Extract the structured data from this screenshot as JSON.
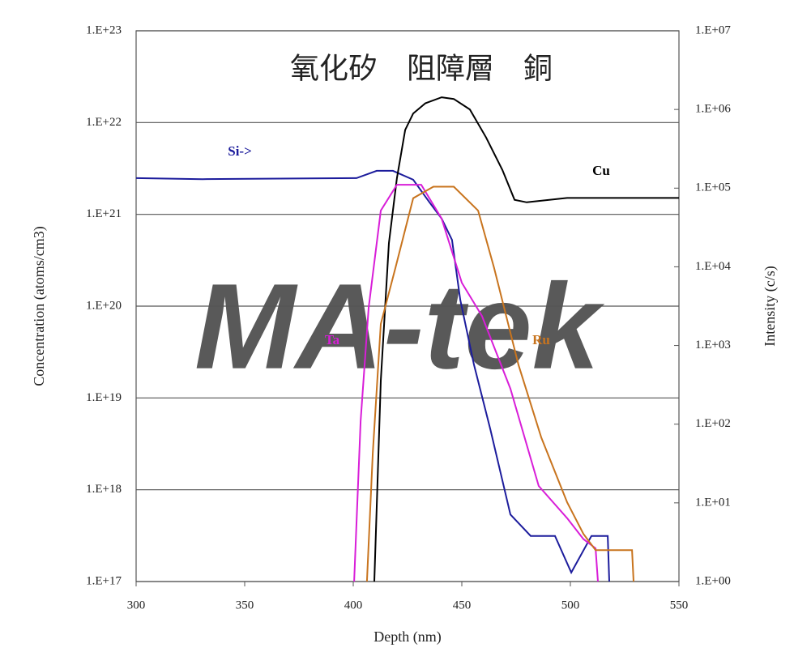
{
  "chart_data": {
    "type": "line",
    "title": "氧化矽　阻障層　銅",
    "watermark": "MA-tek",
    "xlabel": "Depth (nm)",
    "ylabel": "Concentration (atoms/cm3)",
    "y2label": "Intensity (c/s)",
    "xlim": [
      300,
      550
    ],
    "xticks": [
      300,
      350,
      400,
      450,
      500,
      550
    ],
    "ylog": true,
    "ylim": [
      1e+17,
      1e+23
    ],
    "yticks": [
      {
        "value": 1e+17,
        "label": "1.E+17"
      },
      {
        "value": 1e+18,
        "label": "1.E+18"
      },
      {
        "value": 1e+19,
        "label": "1.E+19"
      },
      {
        "value": 1e+20,
        "label": "1.E+20"
      },
      {
        "value": 1e+21,
        "label": "1.E+21"
      },
      {
        "value": 1e+22,
        "label": "1.E+22"
      },
      {
        "value": 1e+23,
        "label": "1.E+23"
      }
    ],
    "y2log": true,
    "y2lim": [
      1,
      10000000.0
    ],
    "y2ticks": [
      {
        "value": 1,
        "label": "1.E+00"
      },
      {
        "value": 10,
        "label": "1.E+01"
      },
      {
        "value": 100,
        "label": "1.E+02"
      },
      {
        "value": 1000,
        "label": "1.E+03"
      },
      {
        "value": 10000,
        "label": "1.E+04"
      },
      {
        "value": 100000,
        "label": "1.E+05"
      },
      {
        "value": 1000000,
        "label": "1.E+06"
      },
      {
        "value": 10000000,
        "label": "1.E+07"
      }
    ],
    "grid": true,
    "series": [
      {
        "name": "Si->",
        "color": "#1c1c9c",
        "axis": "y2",
        "x": [
          300,
          330.6,
          401.5,
          410.8,
          418.3,
          427.6,
          435.1,
          440.7,
          445.5,
          449.3,
          455.6,
          463.1,
          472.4,
          481.7,
          492.9,
          500.4,
          509.7,
          517.2,
          517.9
        ],
        "values": [
          134000,
          130000,
          134000,
          166000,
          166000,
          128000,
          66000,
          41000,
          22000,
          3800,
          570,
          87,
          7.1,
          3.8,
          3.8,
          1.3,
          3.8,
          3.8,
          1
        ]
      },
      {
        "name": "Cu",
        "color": "#000000",
        "axis": "y2",
        "x": [
          409.7,
          412.7,
          416.4,
          420.1,
          423.9,
          427.6,
          433.2,
          440.7,
          446.3,
          453.7,
          461.2,
          468.7,
          474.3,
          479.9,
          498.5,
          550
        ],
        "values": [
          1,
          357,
          20000,
          134000,
          550000,
          890000,
          1200000,
          1430000,
          1360000,
          1000000,
          440000,
          170000,
          71000,
          66000,
          75000,
          75000
        ]
      },
      {
        "name": "Ta",
        "color": "#d81ed8",
        "x": [
          400.4,
          403.4,
          407.1,
          412.7,
          420.1,
          431.3,
          440.7,
          450,
          459.3,
          472.4,
          485.4,
          498.5,
          506,
          511.6,
          512.7
        ],
        "values": [
          1e+17,
          5.6e+18,
          9.6e+19,
          1.1e+21,
          2.1e+21,
          2.1e+21,
          9e+20,
          1.8e+20,
          7.8e+19,
          1.26e+19,
          1.1e+18,
          4.9e+17,
          2.9e+17,
          2.3e+17,
          1e+17
        ]
      },
      {
        "name": "Ru",
        "color": "#c8741e",
        "x": [
          406.3,
          409,
          412.7,
          419.4,
          427.6,
          436.9,
          446.3,
          457.5,
          464.9,
          476.1,
          486.6,
          498.5,
          506,
          511.6,
          528.4,
          529.1
        ],
        "values": [
          1e+17,
          2.5e+18,
          6.4e+19,
          2.6e+20,
          1.5e+21,
          2e+21,
          2e+21,
          1.1e+21,
          2.6e+20,
          2.3e+19,
          3.7e+18,
          7.3e+17,
          3.3e+17,
          2.2e+17,
          2.2e+17,
          1e+17
        ]
      }
    ]
  }
}
